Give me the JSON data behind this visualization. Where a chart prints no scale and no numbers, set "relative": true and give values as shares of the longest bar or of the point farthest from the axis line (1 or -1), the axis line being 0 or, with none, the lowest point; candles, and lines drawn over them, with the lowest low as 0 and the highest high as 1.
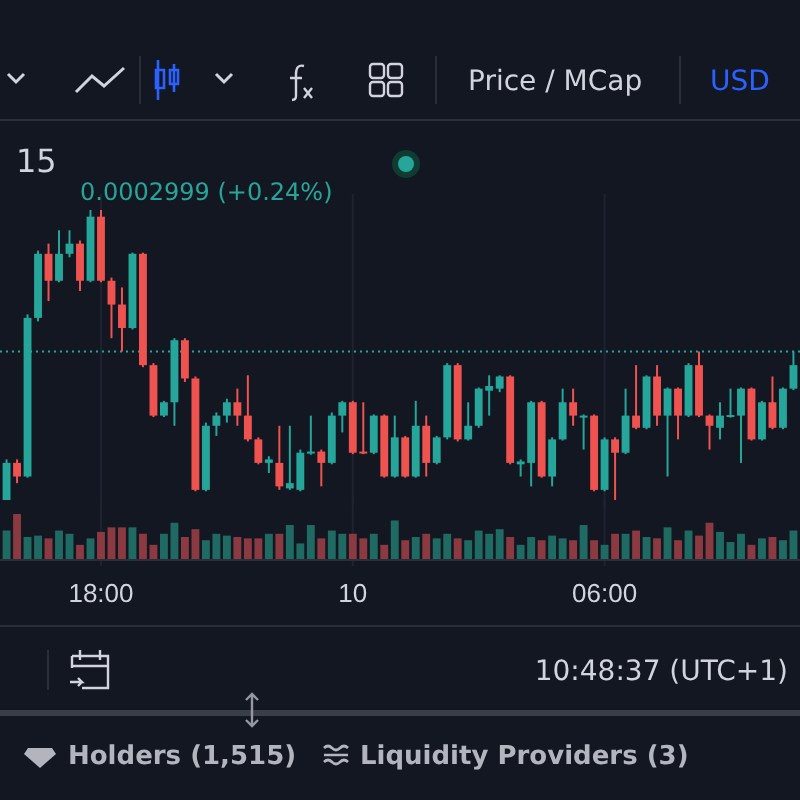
{
  "chart_data": [
    {
      "type": "candlestick",
      "relative": true,
      "grid": "x",
      "tick_labels": false,
      "categories": [
        null,
        null,
        null,
        null,
        null,
        null,
        null,
        null,
        null,
        null,
        null,
        null,
        null,
        null,
        null,
        null,
        null,
        null,
        null,
        null,
        null,
        null,
        null,
        null,
        null,
        null,
        null,
        null,
        null,
        null,
        null,
        null,
        null,
        null,
        null,
        null,
        null,
        null,
        null,
        null,
        null,
        null,
        null,
        null,
        null,
        null,
        null,
        null,
        null,
        null,
        null,
        null,
        null,
        null,
        null,
        null,
        null,
        null,
        null,
        null,
        null,
        null,
        null,
        null,
        null,
        null,
        null,
        null,
        null,
        null,
        null,
        null,
        null,
        null,
        null,
        null
      ],
      "ohlc": [
        [
          0,
          0.14,
          0,
          0.128
        ],
        [
          0.128,
          0.14,
          0.058,
          0.081
        ],
        [
          0.081,
          0.64,
          0.077,
          0.628
        ],
        [
          0.628,
          0.86,
          0.616,
          0.849
        ],
        [
          0.849,
          0.884,
          0.686,
          0.756
        ],
        [
          0.756,
          0.93,
          0.751,
          0.849
        ],
        [
          0.849,
          0.93,
          0.837,
          0.884
        ],
        [
          0.884,
          0.895,
          0.721,
          0.756
        ],
        [
          0.756,
          1,
          0.751,
          0.977
        ],
        [
          0.977,
          1,
          0.751,
          0.756
        ],
        [
          0.756,
          0.767,
          0.558,
          0.674
        ],
        [
          0.674,
          0.733,
          0.512,
          0.593
        ],
        [
          0.593,
          0.853,
          0.588,
          0.849
        ],
        [
          0.849,
          0.853,
          0.458,
          0.465
        ],
        [
          0.465,
          0.472,
          0.286,
          0.291
        ],
        [
          0.291,
          0.342,
          0.286,
          0.337
        ],
        [
          0.337,
          0.558,
          0.256,
          0.551
        ],
        [
          0.551,
          0.558,
          0.407,
          0.419
        ],
        [
          0.419,
          0.426,
          0.03,
          0.035
        ],
        [
          0.035,
          0.267,
          0.03,
          0.256
        ],
        [
          0.256,
          0.302,
          0.221,
          0.291
        ],
        [
          0.291,
          0.349,
          0.267,
          0.337
        ],
        [
          0.337,
          0.384,
          0.256,
          0.291
        ],
        [
          0.291,
          0.43,
          0.202,
          0.209
        ],
        [
          0.209,
          0.216,
          0.123,
          0.128
        ],
        [
          0.128,
          0.151,
          0.093,
          0.14
        ],
        [
          0.128,
          0.256,
          0.035,
          0.047
        ],
        [
          0.04,
          0.256,
          0.035,
          0.058
        ],
        [
          0.035,
          0.174,
          0.03,
          0.163
        ],
        [
          0.16,
          0.291,
          0.156,
          0.167
        ],
        [
          0.167,
          0.174,
          0.047,
          0.128
        ],
        [
          0.128,
          0.302,
          0.123,
          0.291
        ],
        [
          0.291,
          0.342,
          0.233,
          0.337
        ],
        [
          0.337,
          0.342,
          0.158,
          0.163
        ],
        [
          0.167,
          0.337,
          0.158,
          0.163
        ],
        [
          0.163,
          0.295,
          0.158,
          0.291
        ],
        [
          0.291,
          0.295,
          0.077,
          0.081
        ],
        [
          0.081,
          0.291,
          0.077,
          0.216
        ],
        [
          0.216,
          0.221,
          0.077,
          0.081
        ],
        [
          0.081,
          0.342,
          0.077,
          0.256
        ],
        [
          0.256,
          0.291,
          0.081,
          0.128
        ],
        [
          0.128,
          0.221,
          0.123,
          0.216
        ],
        [
          0.216,
          0.472,
          0.209,
          0.465
        ],
        [
          0.465,
          0.472,
          0.202,
          0.209
        ],
        [
          0.209,
          0.337,
          0.205,
          0.256
        ],
        [
          0.256,
          0.388,
          0.249,
          0.384
        ],
        [
          0.377,
          0.43,
          0.291,
          0.393
        ],
        [
          0.384,
          0.43,
          0.372,
          0.426
        ],
        [
          0.426,
          0.43,
          0.123,
          0.128
        ],
        [
          0.123,
          0.14,
          0.081,
          0.133
        ],
        [
          0.128,
          0.342,
          0.047,
          0.337
        ],
        [
          0.337,
          0.342,
          0.077,
          0.081
        ],
        [
          0.081,
          0.216,
          0.047,
          0.209
        ],
        [
          0.209,
          0.384,
          0.205,
          0.337
        ],
        [
          0.337,
          0.384,
          0.256,
          0.291
        ],
        [
          0.286,
          0.295,
          0.174,
          0.291
        ],
        [
          0.291,
          0.295,
          0.03,
          0.035
        ],
        [
          0.035,
          0.216,
          0.03,
          0.209
        ],
        [
          0.209,
          0.216,
          0,
          0.163
        ],
        [
          0.163,
          0.384,
          0.158,
          0.291
        ],
        [
          0.291,
          0.465,
          0.244,
          0.249
        ],
        [
          0.249,
          0.43,
          0.244,
          0.426
        ],
        [
          0.426,
          0.465,
          0.256,
          0.291
        ],
        [
          0.291,
          0.388,
          0.081,
          0.384
        ],
        [
          0.384,
          0.388,
          0.209,
          0.291
        ],
        [
          0.291,
          0.472,
          0.286,
          0.465
        ],
        [
          0.465,
          0.512,
          0.286,
          0.291
        ],
        [
          0.291,
          0.295,
          0.174,
          0.256
        ],
        [
          0.249,
          0.337,
          0.209,
          0.291
        ],
        [
          0.288,
          0.384,
          0.284,
          0.293
        ],
        [
          0.291,
          0.388,
          0.128,
          0.384
        ],
        [
          0.384,
          0.388,
          0.205,
          0.209
        ],
        [
          0.209,
          0.342,
          0.205,
          0.337
        ],
        [
          0.337,
          0.426,
          0.244,
          0.249
        ],
        [
          0.249,
          0.388,
          0.244,
          0.384
        ],
        [
          0.384,
          0.512,
          0.379,
          0.465
        ]
      ],
      "colors": [
        "#26a69a",
        "#ef5350",
        "#26a69a",
        "#26a69a",
        "#ef5350",
        "#26a69a",
        "#26a69a",
        "#ef5350",
        "#26a69a",
        "#ef5350",
        "#ef5350",
        "#ef5350",
        "#26a69a",
        "#ef5350",
        "#ef5350",
        "#26a69a",
        "#26a69a",
        "#ef5350",
        "#ef5350",
        "#26a69a",
        "#26a69a",
        "#26a69a",
        "#ef5350",
        "#ef5350",
        "#ef5350",
        "#26a69a",
        "#ef5350",
        "#26a69a",
        "#26a69a",
        "#26a69a",
        "#ef5350",
        "#26a69a",
        "#26a69a",
        "#ef5350",
        "#ef5350",
        "#26a69a",
        "#ef5350",
        "#26a69a",
        "#ef5350",
        "#26a69a",
        "#ef5350",
        "#26a69a",
        "#26a69a",
        "#ef5350",
        "#26a69a",
        "#26a69a",
        "#26a69a",
        "#26a69a",
        "#ef5350",
        "#26a69a",
        "#26a69a",
        "#ef5350",
        "#26a69a",
        "#26a69a",
        "#ef5350",
        "#26a69a",
        "#ef5350",
        "#26a69a",
        "#ef5350",
        "#26a69a",
        "#ef5350",
        "#26a69a",
        "#ef5350",
        "#26a69a",
        "#ef5350",
        "#26a69a",
        "#ef5350",
        "#ef5350",
        "#26a69a",
        "#26a69a",
        "#26a69a",
        "#ef5350",
        "#26a69a",
        "#ef5350",
        "#26a69a",
        "#26a69a"
      ],
      "ref_lines": [
        {
          "axis": "y",
          "value": 0.512,
          "color": "#26a69a",
          "line_style": "dotted"
        }
      ],
      "annotations": [
        "Price / MCap",
        "USD",
        "15",
        "0.0002999 (+0.24%)"
      ]
    },
    {
      "type": "bar",
      "relative": true,
      "grid": "x",
      "categories": [
        null,
        null,
        null,
        null,
        null,
        null,
        null,
        null,
        null,
        "18:00",
        null,
        null,
        null,
        null,
        null,
        null,
        null,
        null,
        null,
        null,
        null,
        null,
        null,
        null,
        null,
        null,
        null,
        null,
        null,
        null,
        null,
        null,
        null,
        "10",
        null,
        null,
        null,
        null,
        null,
        null,
        null,
        null,
        null,
        null,
        null,
        null,
        null,
        null,
        null,
        null,
        null,
        null,
        null,
        null,
        null,
        null,
        null,
        "06:00",
        null,
        null,
        null,
        null,
        null,
        null,
        null,
        null,
        null,
        null,
        null,
        null,
        null,
        null,
        null,
        null,
        null,
        null
      ],
      "values": [
        0.64,
        1,
        0.5,
        0.53,
        0.47,
        0.64,
        0.57,
        0.33,
        0.47,
        0.61,
        0.71,
        0.71,
        0.71,
        0.57,
        0.33,
        0.57,
        0.81,
        0.5,
        0.67,
        0.43,
        0.57,
        0.53,
        0.5,
        0.47,
        0.47,
        0.57,
        0.57,
        0.76,
        0.36,
        0.76,
        0.47,
        0.64,
        0.57,
        0.57,
        0.47,
        0.57,
        0.33,
        0.86,
        0.43,
        0.5,
        0.57,
        0.47,
        0.57,
        0.47,
        0.43,
        0.64,
        0.57,
        0.67,
        0.5,
        0.33,
        0.5,
        0.43,
        0.53,
        0.47,
        0.43,
        0.76,
        0.43,
        0.33,
        0.57,
        0.57,
        0.64,
        0.5,
        0.47,
        0.71,
        0.43,
        0.64,
        0.53,
        0.81,
        0.61,
        0.39,
        0.57,
        0.33,
        0.47,
        0.5,
        0.43,
        0.64
      ],
      "colors": [
        "#1f6b63",
        "#8a3a40",
        "#1f6b63",
        "#1f6b63",
        "#8a3a40",
        "#1f6b63",
        "#1f6b63",
        "#8a3a40",
        "#1f6b63",
        "#8a3a40",
        "#8a3a40",
        "#8a3a40",
        "#1f6b63",
        "#8a3a40",
        "#8a3a40",
        "#1f6b63",
        "#1f6b63",
        "#8a3a40",
        "#8a3a40",
        "#1f6b63",
        "#1f6b63",
        "#1f6b63",
        "#8a3a40",
        "#8a3a40",
        "#8a3a40",
        "#1f6b63",
        "#8a3a40",
        "#1f6b63",
        "#1f6b63",
        "#1f6b63",
        "#8a3a40",
        "#1f6b63",
        "#1f6b63",
        "#8a3a40",
        "#8a3a40",
        "#1f6b63",
        "#8a3a40",
        "#1f6b63",
        "#8a3a40",
        "#1f6b63",
        "#8a3a40",
        "#1f6b63",
        "#1f6b63",
        "#8a3a40",
        "#1f6b63",
        "#1f6b63",
        "#1f6b63",
        "#1f6b63",
        "#8a3a40",
        "#1f6b63",
        "#1f6b63",
        "#8a3a40",
        "#1f6b63",
        "#1f6b63",
        "#8a3a40",
        "#1f6b63",
        "#8a3a40",
        "#1f6b63",
        "#8a3a40",
        "#1f6b63",
        "#8a3a40",
        "#1f6b63",
        "#8a3a40",
        "#1f6b63",
        "#8a3a40",
        "#1f6b63",
        "#8a3a40",
        "#8a3a40",
        "#1f6b63",
        "#1f6b63",
        "#1f6b63",
        "#8a3a40",
        "#1f6b63",
        "#8a3a40",
        "#1f6b63",
        "#1f6b63"
      ],
      "annotations": [
        "10:48:37 (UTC+1)",
        "Holders (1,515)",
        "Liquidity Providers (3)"
      ]
    }
  ]
}
